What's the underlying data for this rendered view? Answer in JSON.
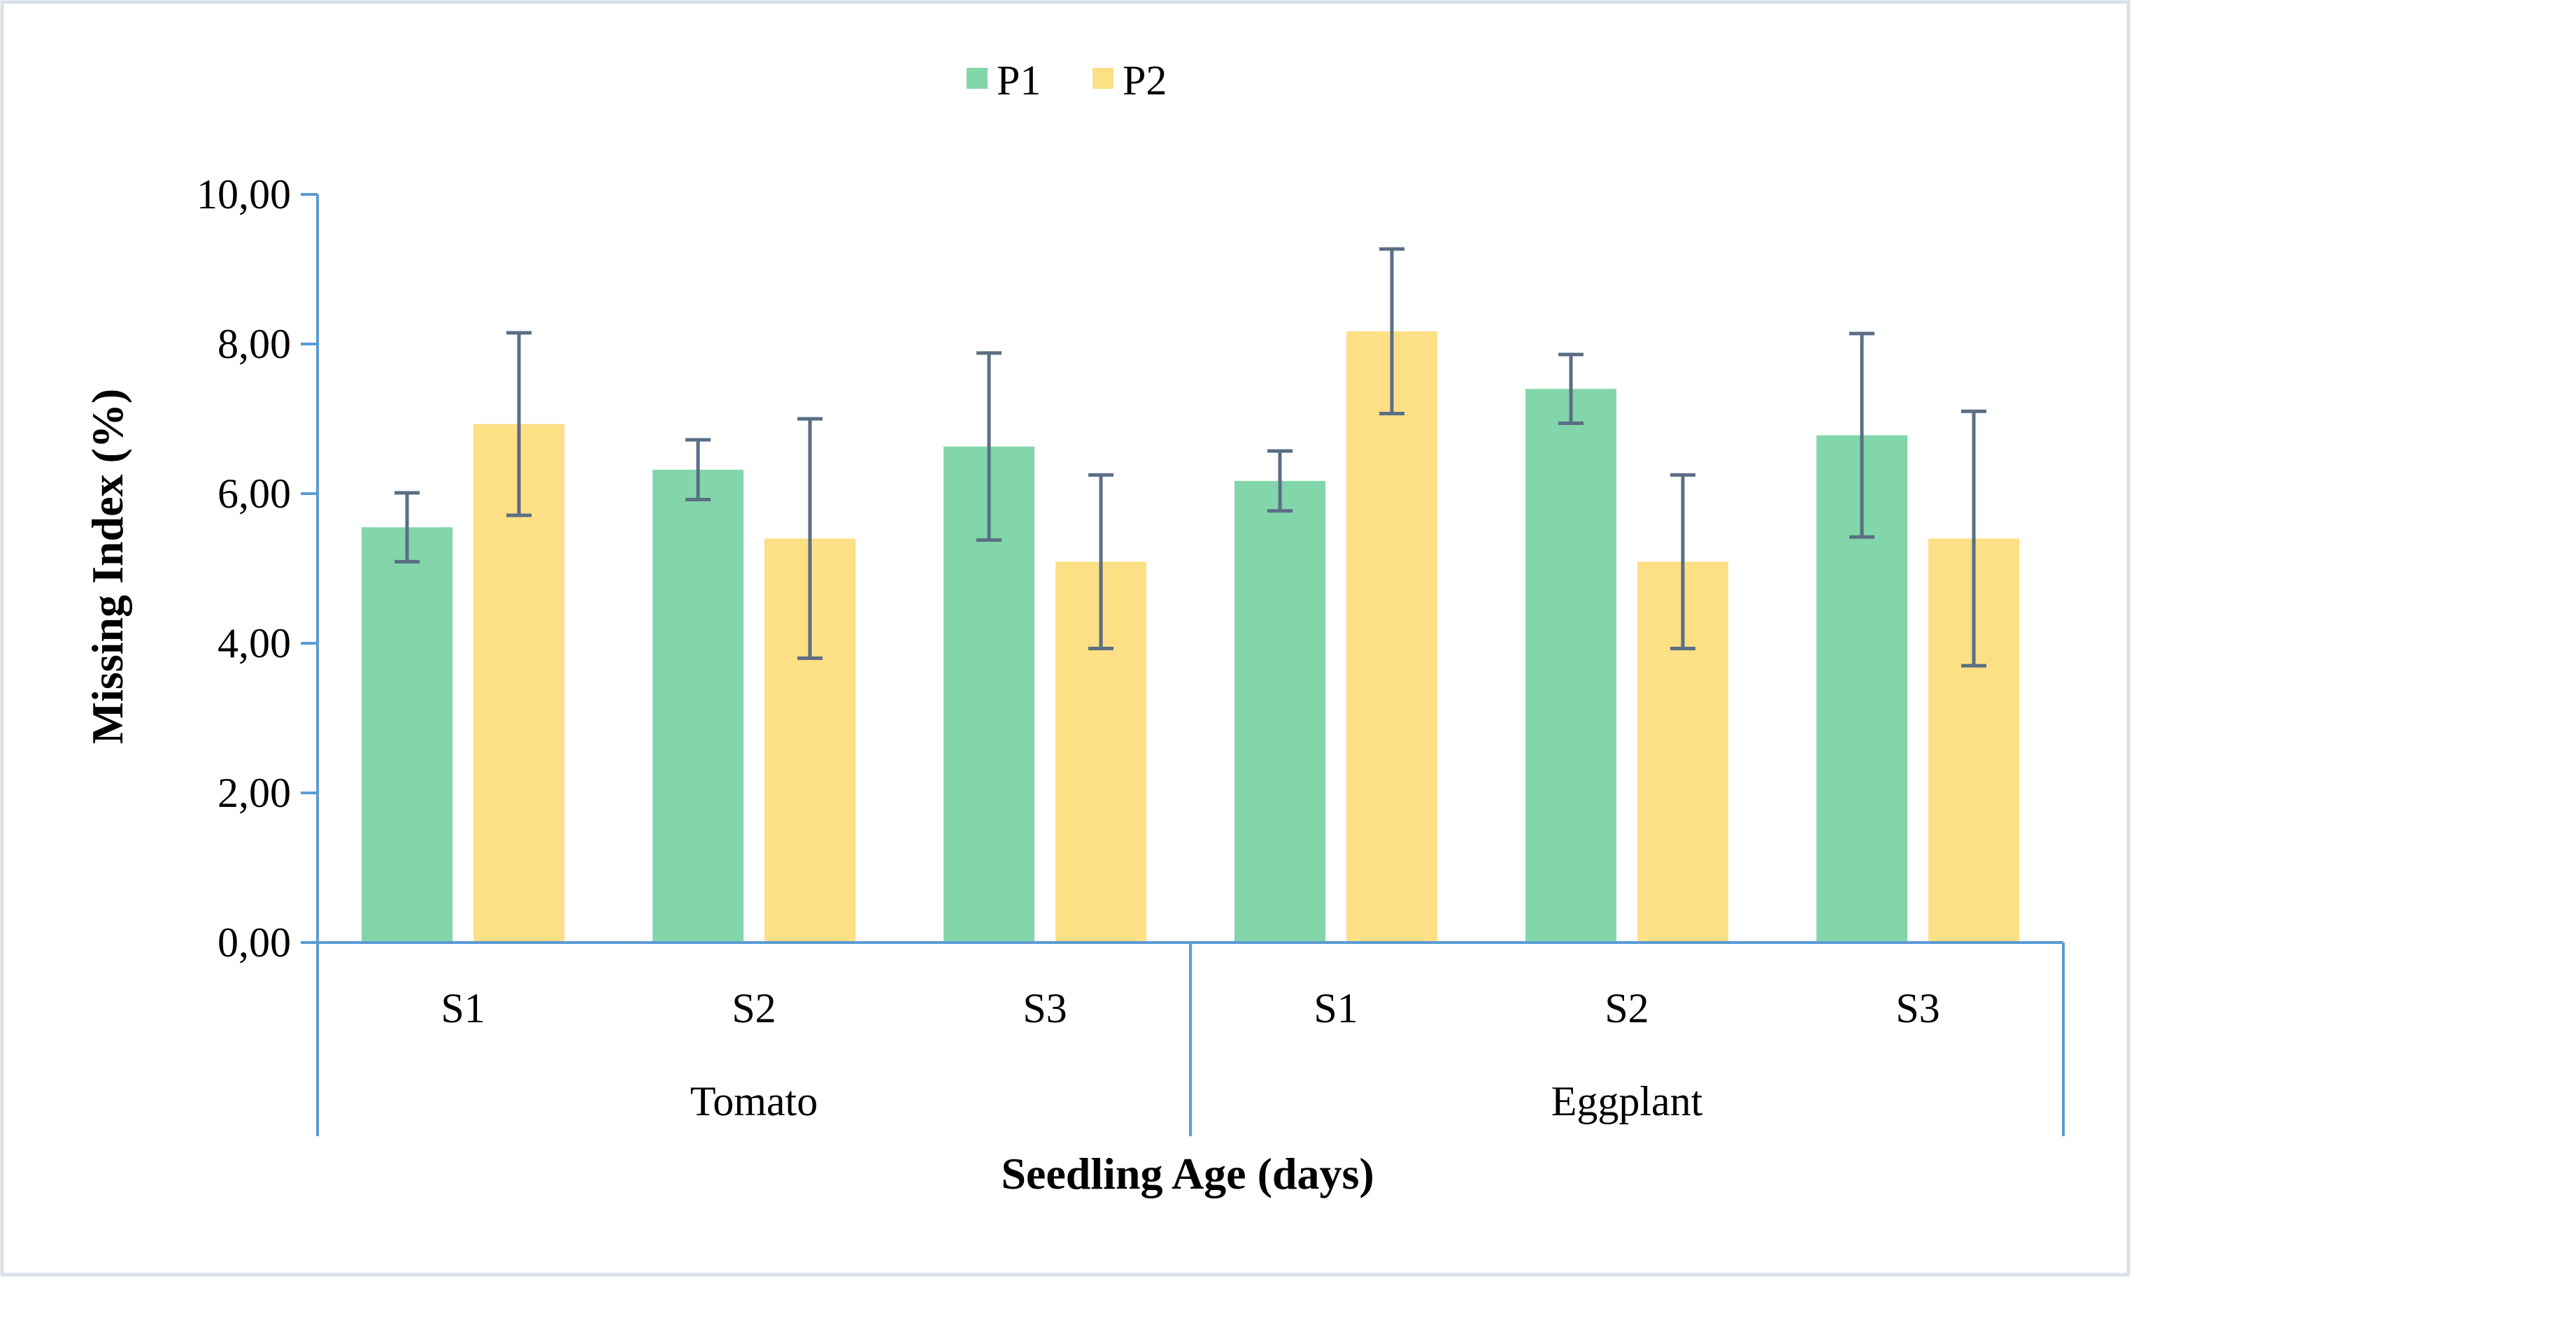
{
  "colors": {
    "p1": "#82d6a9",
    "p2": "#fddf85",
    "axis": "#5b9bd5",
    "error_bar": "#5a6e84",
    "frame": "#d9e1e8"
  },
  "legend": {
    "items": [
      {
        "label": "P1",
        "color": "#82d6a9"
      },
      {
        "label": "P2",
        "color": "#fddf85"
      }
    ]
  },
  "chart_data": {
    "type": "bar",
    "title": "",
    "xlabel": "Seedling Age (days)",
    "ylabel": "Missing Index (%)",
    "ylim": [
      0,
      10
    ],
    "yticks": [
      "0,00",
      "2,00",
      "4,00",
      "6,00",
      "8,00",
      "10,00"
    ],
    "legend_position": "top-center",
    "grid": false,
    "groups": [
      {
        "name": "Tomato",
        "categories": [
          "S1",
          "S2",
          "S3"
        ]
      },
      {
        "name": "Eggplant",
        "categories": [
          "S1",
          "S2",
          "S3"
        ]
      }
    ],
    "categories": [
      "S1",
      "S2",
      "S3",
      "S1",
      "S2",
      "S3"
    ],
    "series": [
      {
        "name": "P1",
        "values": [
          5.55,
          6.32,
          6.63,
          6.17,
          7.4,
          6.78
        ],
        "error": [
          0.46,
          0.4,
          1.25,
          0.4,
          0.46,
          1.36
        ]
      },
      {
        "name": "P2",
        "values": [
          6.93,
          5.4,
          5.09,
          8.17,
          5.09,
          5.4
        ],
        "error": [
          1.22,
          1.6,
          1.16,
          1.1,
          1.16,
          1.7
        ]
      }
    ]
  }
}
